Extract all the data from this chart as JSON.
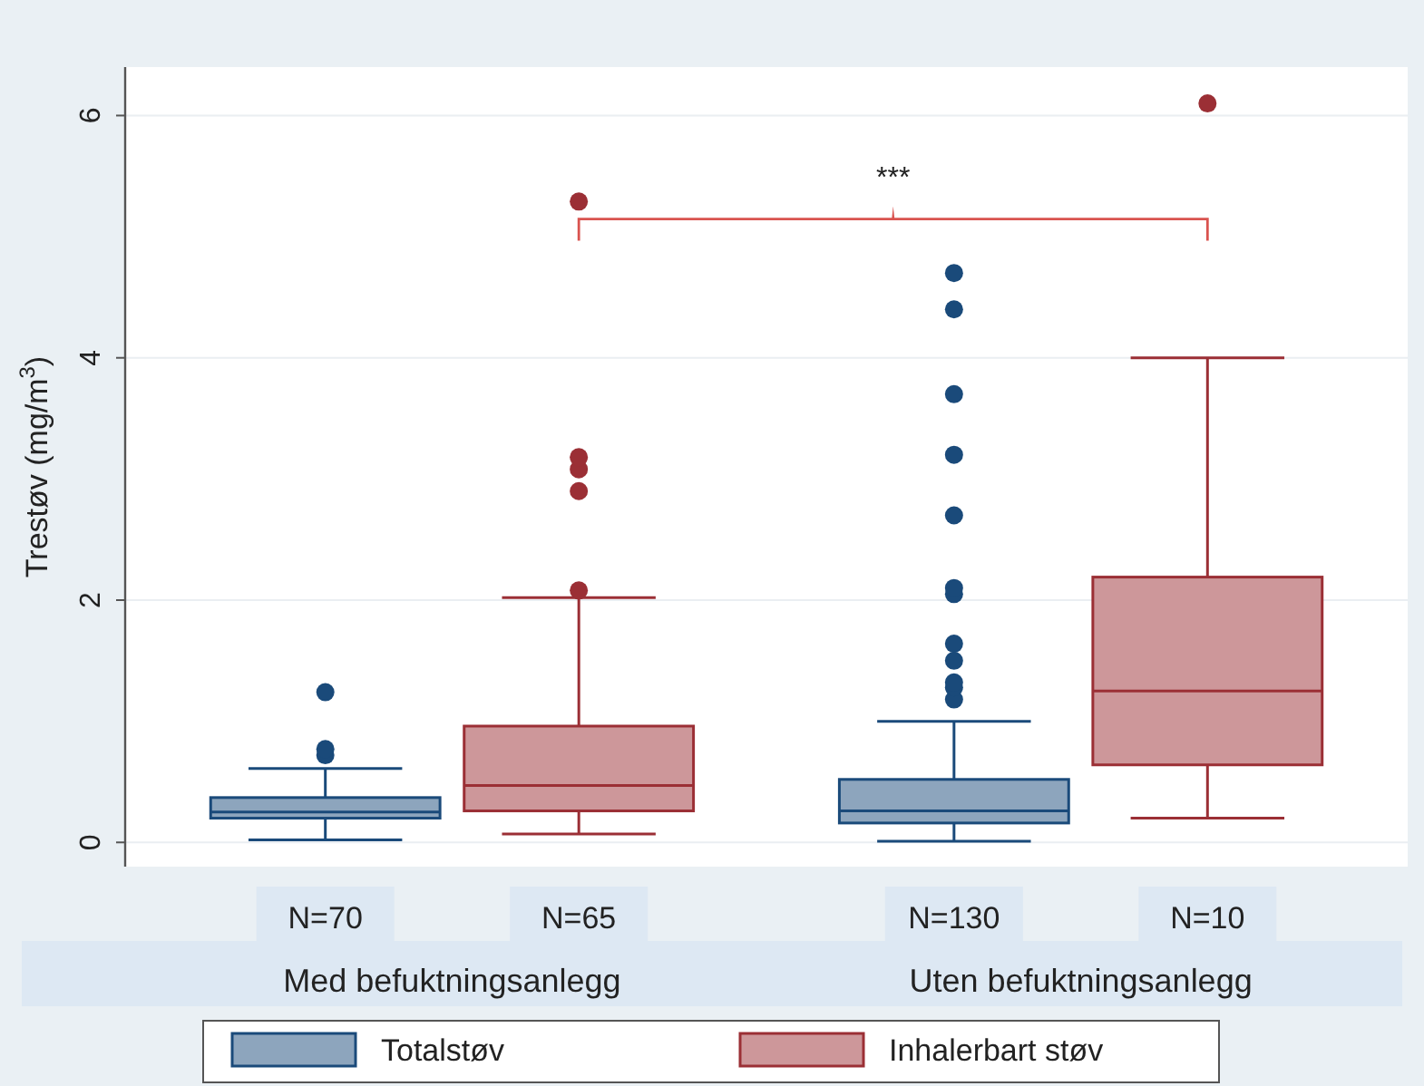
{
  "chart_data": {
    "type": "box",
    "ylabel": "Trestøv (mg/m$^{3}$)",
    "categories": [
      "Med befuktningsanlegg",
      "Uten befuktningsanlegg"
    ],
    "ylim": [
      -0.2,
      6.4
    ],
    "yticks": [
      0,
      2,
      4,
      6
    ],
    "grid": "y",
    "legend": "bottom",
    "series": [
      {
        "name": "Totalstøv",
        "color": "#1a4a7a",
        "boxes": [
          {
            "low": 0.02,
            "q1": 0.2,
            "median": 0.25,
            "q3": 0.37,
            "high": 0.61,
            "outliers": [
              0.72,
              0.77,
              1.24
            ]
          },
          {
            "low": 0.01,
            "q1": 0.16,
            "median": 0.26,
            "q3": 0.52,
            "high": 1.0,
            "outliers": [
              1.18,
              1.28,
              1.32,
              1.5,
              1.64,
              2.05,
              2.1,
              2.7,
              3.2,
              3.7,
              4.4,
              4.7
            ]
          }
        ]
      },
      {
        "name": "Inhalerbart støv",
        "color": "#9b2f35",
        "boxes": [
          {
            "low": 0.07,
            "q1": 0.26,
            "median": 0.47,
            "q3": 0.96,
            "high": 2.02,
            "outliers": [
              2.08,
              2.9,
              3.08,
              3.18,
              5.29
            ]
          },
          {
            "low": 0.2,
            "q1": 0.64,
            "median": 1.25,
            "q3": 2.19,
            "high": 4.0,
            "outliers": [
              6.1
            ]
          }
        ]
      }
    ],
    "annotations": [
      "***",
      "N=70",
      "N=65",
      "N=130",
      "N=10"
    ]
  }
}
